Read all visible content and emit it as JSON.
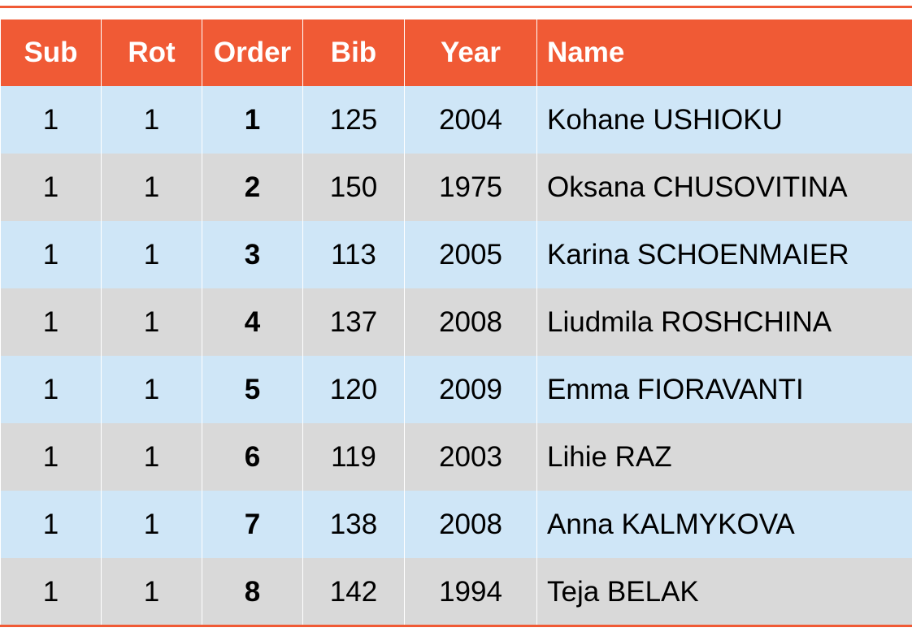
{
  "table": {
    "header": [
      "Sub",
      "Rot",
      "Order",
      "Bib",
      "Year",
      "Name"
    ],
    "rows": [
      [
        1,
        1,
        1,
        125,
        2004,
        "Kohane USHIOKU"
      ],
      [
        1,
        1,
        2,
        150,
        1975,
        "Oksana CHUSOVITINA"
      ],
      [
        1,
        1,
        3,
        113,
        2005,
        "Karina SCHOENMAIER"
      ],
      [
        1,
        1,
        4,
        137,
        2008,
        "Liudmila ROSHCHINA"
      ],
      [
        1,
        1,
        5,
        120,
        2009,
        "Emma FIORAVANTI"
      ],
      [
        1,
        1,
        6,
        119,
        2003,
        "Lihie RAZ"
      ],
      [
        1,
        1,
        7,
        138,
        2008,
        "Anna KALMYKOVA"
      ],
      [
        1,
        1,
        8,
        142,
        1994,
        "Teja BELAK"
      ]
    ]
  }
}
